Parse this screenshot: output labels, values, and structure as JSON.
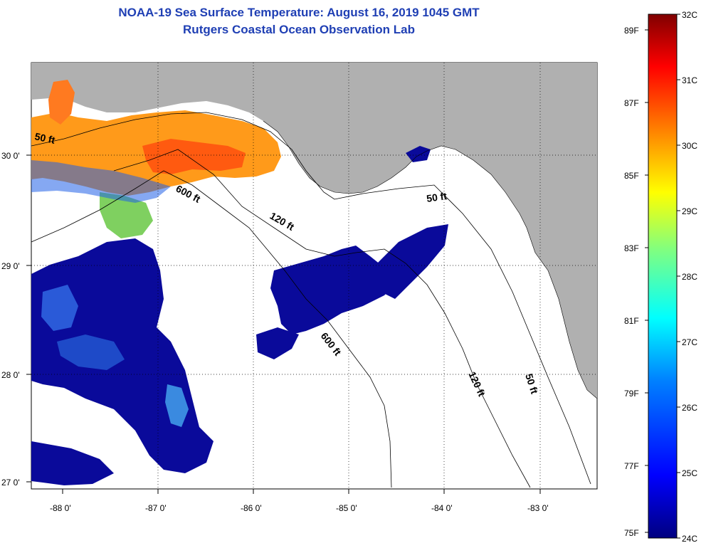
{
  "title": {
    "line1": "NOAA-19 Sea Surface Temperature:  August 16, 2019 1045 GMT",
    "line2": "Rutgers Coastal Ocean Observation Lab"
  },
  "axes": {
    "lon_ticks": [
      "-88 0'",
      "-87 0'",
      "-86 0'",
      "-85 0'",
      "-84 0'",
      "-83 0'"
    ],
    "lat_ticks": [
      "30 0'",
      "29 0'",
      "28 0'",
      "27 0'"
    ]
  },
  "contours": [
    {
      "label": "50 ft"
    },
    {
      "label": "600 ft"
    },
    {
      "label": "120 ft"
    },
    {
      "label": "50 ft"
    },
    {
      "label": "600 ft"
    },
    {
      "label": "120 ft"
    },
    {
      "label": "50 ft"
    }
  ],
  "colorbar": {
    "celsius_labels": [
      "32C",
      "31C",
      "30C",
      "29C",
      "28C",
      "27C",
      "26C",
      "25C",
      "24C"
    ],
    "fahrenheit_labels": [
      "89F",
      "87F",
      "85F",
      "83F",
      "81F",
      "79F",
      "77F",
      "75F"
    ],
    "colors": [
      "#800000",
      "#ff0000",
      "#ff8000",
      "#ffff00",
      "#80ff80",
      "#00ffff",
      "#0080ff",
      "#0000ff",
      "#000080"
    ]
  },
  "colors": {
    "land": "#b0b0b0",
    "ocean_nodata": "#ffffff",
    "title": "#1f3fb4"
  }
}
